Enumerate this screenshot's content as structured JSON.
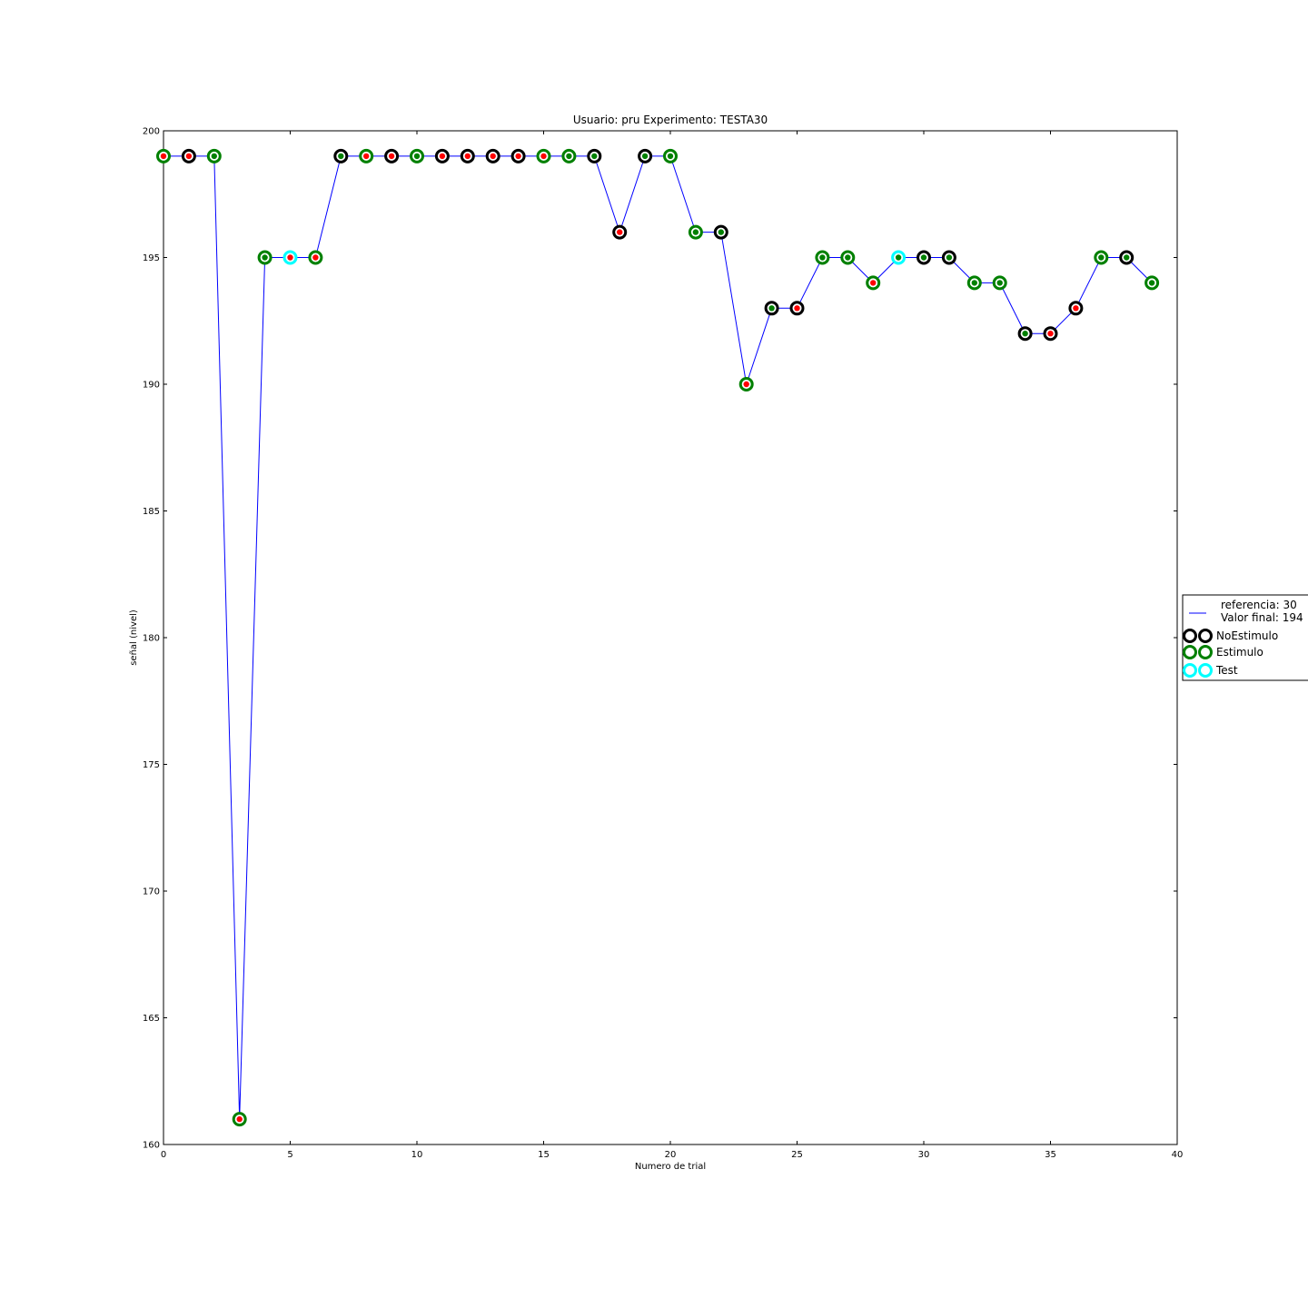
{
  "chart_data": {
    "type": "line",
    "title": "Usuario: pru Experimento: TESTA30",
    "xlabel": "Numero de trial",
    "ylabel": "señal (nivel)",
    "xlim": [
      0,
      40
    ],
    "ylim": [
      160,
      200
    ],
    "xticks": [
      0,
      5,
      10,
      15,
      20,
      25,
      30,
      35,
      40
    ],
    "yticks": [
      160,
      165,
      170,
      175,
      180,
      185,
      190,
      195,
      200
    ],
    "grid": false,
    "legend_position": "right",
    "colors": {
      "line": "#0000ff",
      "NoEstimulo": "#000000",
      "Estimulo": "#008000",
      "Test": "#00ffff",
      "response_correct": "#008000",
      "response_error": "#ff0000"
    },
    "series": [
      {
        "name": "referencia: 30\nValor final: 194",
        "legend_lines": [
          "referencia: 30",
          "Valor final: 194"
        ],
        "x": [
          0,
          1,
          2,
          3,
          4,
          5,
          6,
          7,
          8,
          9,
          10,
          11,
          12,
          13,
          14,
          15,
          16,
          17,
          18,
          19,
          20,
          21,
          22,
          23,
          24,
          25,
          26,
          27,
          28,
          29,
          30,
          31,
          32,
          33,
          34,
          35,
          36,
          37,
          38,
          39
        ],
        "y": [
          199,
          199,
          199,
          161,
          195,
          195,
          195,
          199,
          199,
          199,
          199,
          199,
          199,
          199,
          199,
          199,
          199,
          199,
          196,
          199,
          199,
          196,
          196,
          190,
          193,
          193,
          195,
          195,
          194,
          195,
          195,
          195,
          194,
          194,
          192,
          192,
          193,
          195,
          195,
          194
        ]
      }
    ],
    "trial_types": [
      "Estimulo",
      "NoEstimulo",
      "Estimulo",
      "Estimulo",
      "Estimulo",
      "Test",
      "Estimulo",
      "NoEstimulo",
      "Estimulo",
      "NoEstimulo",
      "Estimulo",
      "NoEstimulo",
      "NoEstimulo",
      "NoEstimulo",
      "NoEstimulo",
      "Estimulo",
      "Estimulo",
      "NoEstimulo",
      "NoEstimulo",
      "NoEstimulo",
      "Estimulo",
      "Estimulo",
      "NoEstimulo",
      "Estimulo",
      "NoEstimulo",
      "NoEstimulo",
      "Estimulo",
      "Estimulo",
      "Estimulo",
      "Test",
      "NoEstimulo",
      "NoEstimulo",
      "Estimulo",
      "Estimulo",
      "NoEstimulo",
      "NoEstimulo",
      "NoEstimulo",
      "Estimulo",
      "NoEstimulo",
      "Estimulo"
    ],
    "responses": [
      "error",
      "error",
      "correct",
      "error",
      "correct",
      "error",
      "error",
      "correct",
      "error",
      "error",
      "correct",
      "error",
      "error",
      "error",
      "error",
      "error",
      "correct",
      "correct",
      "error",
      "correct",
      "correct",
      "correct",
      "correct",
      "error",
      "correct",
      "error",
      "correct",
      "correct",
      "error",
      "correct",
      "correct",
      "correct",
      "correct",
      "correct",
      "correct",
      "error",
      "error",
      "correct",
      "correct",
      "correct"
    ],
    "legend": [
      "referencia: 30\nValor final: 194",
      "NoEstimulo",
      "Estimulo",
      "Test"
    ]
  }
}
